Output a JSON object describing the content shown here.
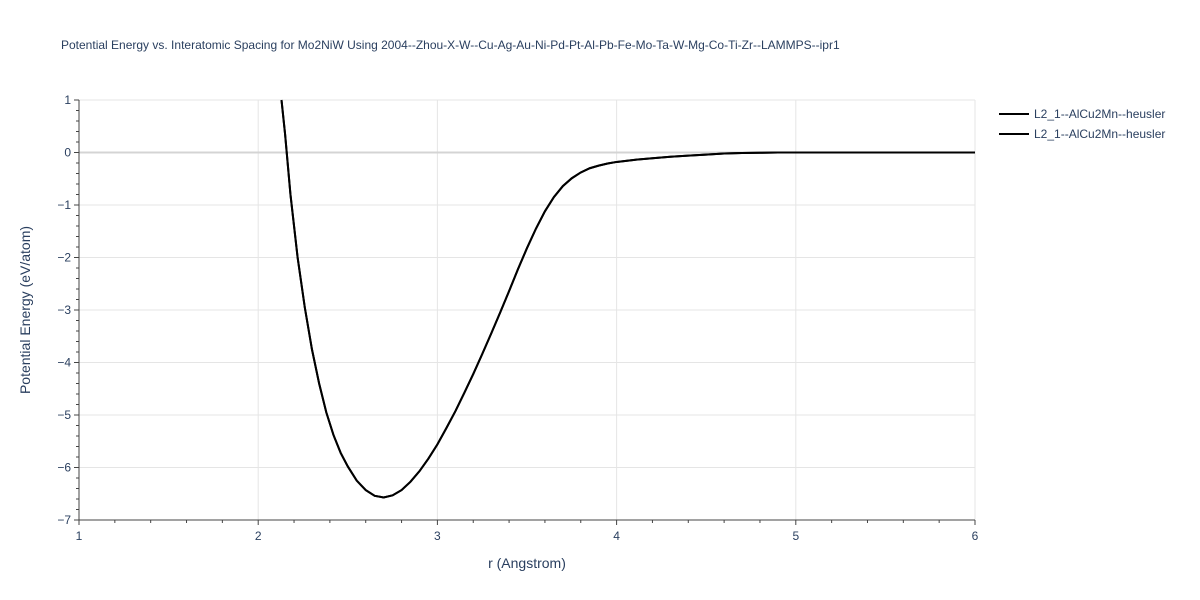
{
  "chart_data": {
    "type": "line",
    "title": "Potential Energy vs. Interatomic Spacing for Mo2NiW Using 2004--Zhou-X-W--Cu-Ag-Au-Ni-Pd-Pt-Al-Pb-Fe-Mo-Ta-W-Mg-Co-Ti-Zr--LAMMPS--ipr1",
    "xlabel": "r (Angstrom)",
    "ylabel": "Potential Energy (eV/atom)",
    "xlim": [
      1,
      6
    ],
    "ylim": [
      -7,
      1
    ],
    "xticks": [
      1,
      2,
      3,
      4,
      5,
      6
    ],
    "xtick_labels": [
      "1",
      "2",
      "3",
      "4",
      "5",
      "6"
    ],
    "yticks": [
      1,
      0,
      -1,
      -2,
      -3,
      -4,
      -5,
      -6,
      -7
    ],
    "ytick_labels": [
      "1",
      "0",
      "−1",
      "−2",
      "−3",
      "−4",
      "−5",
      "−6",
      "−7"
    ],
    "grid": true,
    "legend_position": "top-right",
    "colors": {
      "line": "#000000",
      "grid": "#e5e5e5",
      "zero_line": "#d4d4d4",
      "text": "#2a3f5f"
    },
    "series": [
      {
        "name": "L2_1--AlCu2Mn--heusler",
        "x": [
          2.13,
          2.15,
          2.18,
          2.22,
          2.26,
          2.3,
          2.34,
          2.38,
          2.42,
          2.46,
          2.5,
          2.55,
          2.6,
          2.65,
          2.7,
          2.75,
          2.8,
          2.85,
          2.9,
          2.95,
          3.0,
          3.05,
          3.1,
          3.15,
          3.2,
          3.25,
          3.3,
          3.35,
          3.4,
          3.45,
          3.5,
          3.55,
          3.6,
          3.65,
          3.7,
          3.75,
          3.8,
          3.85,
          3.9,
          3.95,
          4.0,
          4.1,
          4.2,
          4.3,
          4.4,
          4.5,
          4.6,
          4.7,
          4.8,
          4.9,
          5.0,
          5.2,
          5.4,
          5.6,
          5.8,
          6.0
        ],
        "y": [
          1.0,
          0.35,
          -0.8,
          -2.0,
          -2.95,
          -3.75,
          -4.4,
          -4.95,
          -5.38,
          -5.72,
          -5.98,
          -6.25,
          -6.43,
          -6.54,
          -6.57,
          -6.53,
          -6.43,
          -6.27,
          -6.07,
          -5.83,
          -5.56,
          -5.25,
          -4.93,
          -4.58,
          -4.22,
          -3.84,
          -3.45,
          -3.05,
          -2.64,
          -2.22,
          -1.82,
          -1.45,
          -1.12,
          -0.85,
          -0.64,
          -0.49,
          -0.38,
          -0.3,
          -0.25,
          -0.21,
          -0.18,
          -0.14,
          -0.11,
          -0.08,
          -0.06,
          -0.04,
          -0.02,
          -0.01,
          -0.005,
          0.0,
          0.0,
          0.0,
          0.0,
          0.0,
          0.0,
          0.0
        ]
      },
      {
        "name": "L2_1--AlCu2Mn--heusler",
        "x": [
          2.13,
          2.15,
          2.18,
          2.22,
          2.26,
          2.3,
          2.34,
          2.38,
          2.42,
          2.46,
          2.5,
          2.55,
          2.6,
          2.65,
          2.7,
          2.75,
          2.8,
          2.85,
          2.9,
          2.95,
          3.0,
          3.05,
          3.1,
          3.15,
          3.2,
          3.25,
          3.3,
          3.35,
          3.4,
          3.45,
          3.5,
          3.55,
          3.6,
          3.65,
          3.7,
          3.75,
          3.8,
          3.85,
          3.9,
          3.95,
          4.0,
          4.1,
          4.2,
          4.3,
          4.4,
          4.5,
          4.6,
          4.7,
          4.8,
          4.9,
          5.0,
          5.2,
          5.4,
          5.6,
          5.8,
          6.0
        ],
        "y": [
          1.0,
          0.35,
          -0.8,
          -2.0,
          -2.95,
          -3.75,
          -4.4,
          -4.95,
          -5.38,
          -5.72,
          -5.98,
          -6.25,
          -6.43,
          -6.54,
          -6.57,
          -6.53,
          -6.43,
          -6.27,
          -6.07,
          -5.83,
          -5.56,
          -5.25,
          -4.93,
          -4.58,
          -4.22,
          -3.84,
          -3.45,
          -3.05,
          -2.64,
          -2.22,
          -1.82,
          -1.45,
          -1.12,
          -0.85,
          -0.64,
          -0.49,
          -0.38,
          -0.3,
          -0.25,
          -0.21,
          -0.18,
          -0.14,
          -0.11,
          -0.08,
          -0.06,
          -0.04,
          -0.02,
          -0.01,
          -0.005,
          0.0,
          0.0,
          0.0,
          0.0,
          0.0,
          0.0,
          0.0
        ]
      }
    ]
  }
}
